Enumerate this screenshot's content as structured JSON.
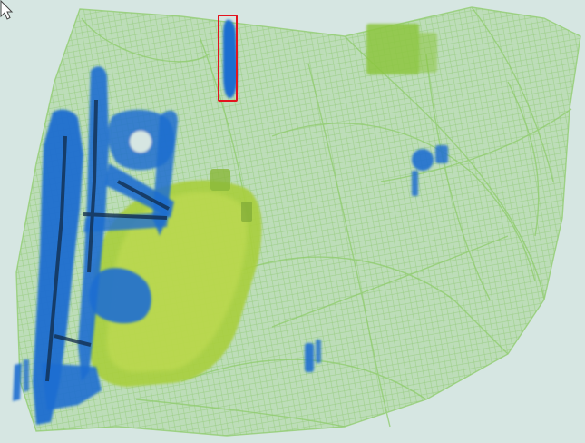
{
  "scan": {
    "background_color": "#d6e6e2",
    "organic_color": "#8fcc6c",
    "dense_organic_color": "#8dc63f",
    "metal_color": "#1e6ed0",
    "dark_metal_color": "#102a48"
  },
  "detection": {
    "box_color": "#e3141e",
    "detected_item_count": 1
  },
  "cursor": {
    "icon": "mouse-pointer-icon"
  }
}
